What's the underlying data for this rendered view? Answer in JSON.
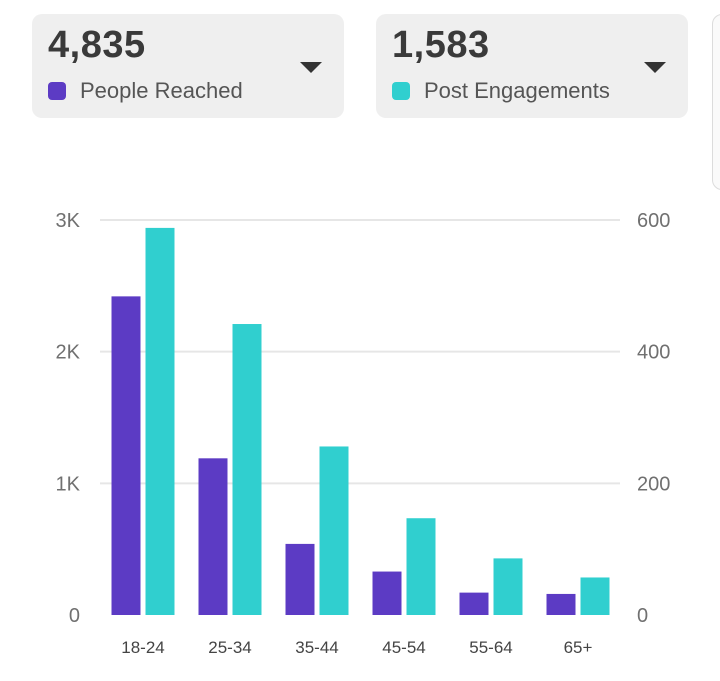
{
  "cards": [
    {
      "value": "4,835",
      "label": "People Reached",
      "color": "#5c3bc4"
    },
    {
      "value": "1,583",
      "label": "Post Engagements",
      "color": "#30cfcf"
    }
  ],
  "chart_data": {
    "type": "bar",
    "categories": [
      "18-24",
      "25-34",
      "35-44",
      "45-54",
      "55-64",
      "65+"
    ],
    "series": [
      {
        "name": "People Reached",
        "axis": "left",
        "color": "#5c3bc4",
        "values": [
          2420,
          1190,
          540,
          330,
          170,
          160
        ]
      },
      {
        "name": "Post Engagements",
        "axis": "right",
        "color": "#30cfcf",
        "values": [
          588,
          442,
          256,
          147,
          86,
          57
        ]
      }
    ],
    "left_axis": {
      "ylim": [
        0,
        3000
      ],
      "ticks": [
        0,
        1000,
        2000,
        3000
      ],
      "tick_labels": [
        "0",
        "1K",
        "2K",
        "3K"
      ]
    },
    "right_axis": {
      "ylim": [
        0,
        600
      ],
      "ticks": [
        0,
        200,
        400,
        600
      ],
      "tick_labels": [
        "0",
        "200",
        "400",
        "600"
      ]
    },
    "grid": true
  }
}
